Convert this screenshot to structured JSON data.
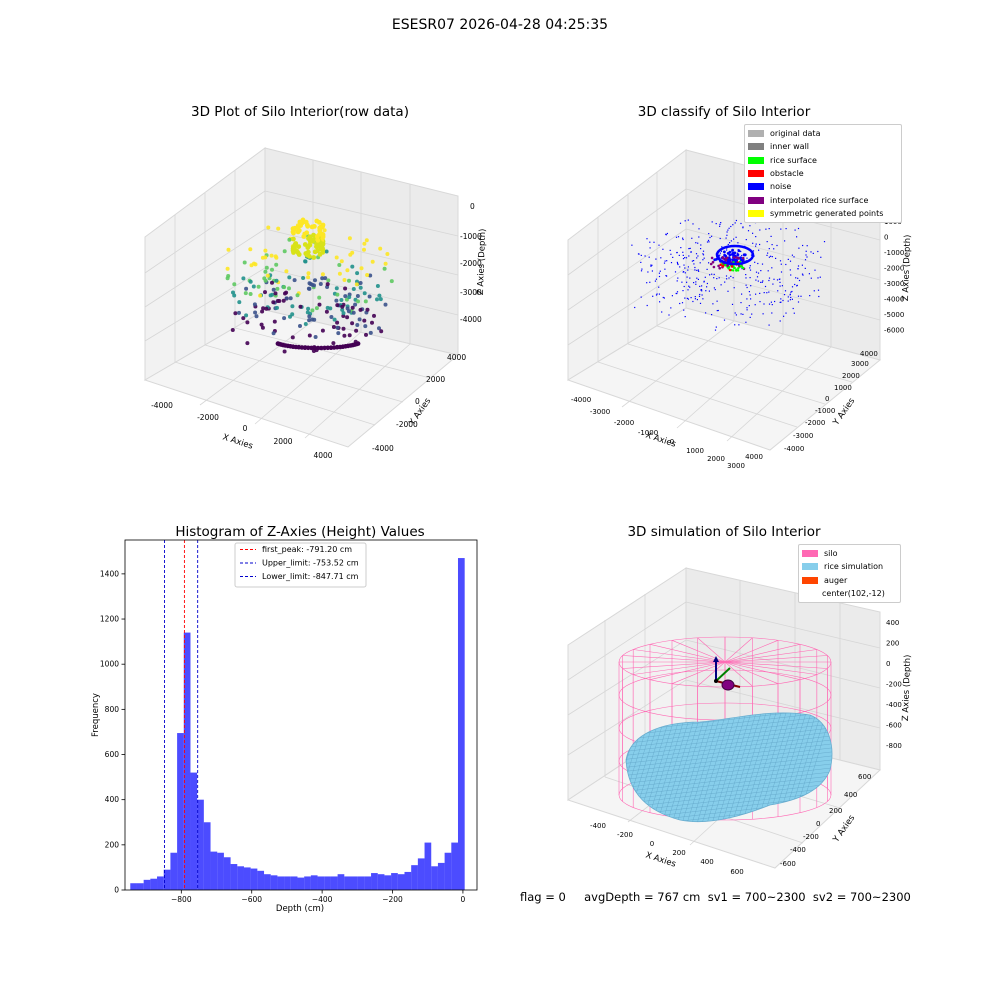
{
  "figure": {
    "suptitle": "ESESR07 2026-04-28 04:25:35",
    "footer": "flag = 0     avgDepth = 767 cm  sv1 = 700~2300  sv2 = 700~2300"
  },
  "panel1": {
    "title": "3D Plot of Silo Interior(row data)",
    "xlabel": "X Axies",
    "ylabel": "Y Axies",
    "zlabel": "Z Axies (Depth)",
    "xticks": [
      "-4000",
      "-2000",
      "0",
      "2000",
      "4000"
    ],
    "yticks": [
      "-4000",
      "-2000",
      "0",
      "2000",
      "4000"
    ],
    "zticks": [
      "0",
      "-1000",
      "-2000",
      "-3000",
      "-4000"
    ],
    "colormap": [
      "#440154",
      "#3b528b",
      "#21918c",
      "#5ec962",
      "#fde725"
    ]
  },
  "panel2": {
    "title": "3D classify of Silo Interior",
    "xlabel": "X Axies",
    "ylabel": "Y Axies",
    "zlabel": "Z Axies (Depth)",
    "xticks": [
      "-4000",
      "-3000",
      "-2000",
      "-1000",
      "0",
      "1000",
      "2000",
      "3000",
      "4000"
    ],
    "yticks": [
      "-4000",
      "-3000",
      "-2000",
      "-1000",
      "0",
      "1000",
      "2000",
      "3000",
      "4000"
    ],
    "zticks": [
      "1000",
      "0",
      "-1000",
      "-2000",
      "-3000",
      "-4000",
      "-5000",
      "-6000"
    ],
    "legend": [
      {
        "label": "original data",
        "color": "#b0b0b0"
      },
      {
        "label": "inner wall",
        "color": "#808080"
      },
      {
        "label": "rice surface",
        "color": "#00ff00"
      },
      {
        "label": "obstacle",
        "color": "#ff0000"
      },
      {
        "label": "noise",
        "color": "#0000ff"
      },
      {
        "label": "interpolated rice surface",
        "color": "#800080"
      },
      {
        "label": "symmetric generated points",
        "color": "#ffff00"
      }
    ]
  },
  "panel3": {
    "title": "Histogram of Z-Axies (Height) Values"
  },
  "panel4": {
    "title": "3D simulation of Silo Interior",
    "xlabel": "X Axies",
    "ylabel": "Y Axies",
    "zlabel": "Z Axies (Depth)",
    "xticks": [
      "-400",
      "-200",
      "0",
      "200",
      "400",
      "600"
    ],
    "yticks": [
      "-600",
      "-400",
      "-200",
      "0",
      "200",
      "400",
      "600"
    ],
    "zticks": [
      "400",
      "200",
      "0",
      "-200",
      "-400",
      "-600",
      "-800"
    ],
    "legend": [
      {
        "label": "silo",
        "color": "#ff69b4"
      },
      {
        "label": "rice simulation",
        "color": "#87ceeb"
      },
      {
        "label": "auger",
        "color": "#ff4500"
      },
      {
        "label": "center(102,-12)",
        "color": ""
      }
    ]
  },
  "chart_data": [
    {
      "type": "scatter",
      "title": "3D Plot of Silo Interior(row data)",
      "xlabel": "X Axies",
      "ylabel": "Y Axies",
      "zlabel": "Z Axies (Depth)",
      "xlim": [
        -4500,
        4500
      ],
      "ylim": [
        -4500,
        4500
      ],
      "zlim": [
        -4500,
        500
      ],
      "color_scale": "viridis by depth",
      "grid": true
    },
    {
      "type": "scatter",
      "title": "3D classify of Silo Interior",
      "xlabel": "X Axies",
      "ylabel": "Y Axies",
      "zlabel": "Z Axies (Depth)",
      "xlim": [
        -4500,
        4500
      ],
      "ylim": [
        -4500,
        4500
      ],
      "zlim": [
        -6500,
        1500
      ],
      "legend_position": "top-right",
      "grid": true
    },
    {
      "type": "bar",
      "title": "Histogram of Z-Axies (Height) Values",
      "xlabel": "Depth (cm)",
      "ylabel": "Frequency",
      "xlim": [
        -960,
        40
      ],
      "ylim": [
        0,
        1550
      ],
      "xticks": [
        -800,
        -600,
        -400,
        -200,
        0
      ],
      "yticks": [
        0,
        200,
        400,
        600,
        800,
        1000,
        1200,
        1400
      ],
      "bin_width": 19,
      "bin_starts": [
        -945,
        -926,
        -907,
        -888,
        -869,
        -850,
        -831,
        -812,
        -793,
        -774,
        -755,
        -736,
        -717,
        -698,
        -679,
        -660,
        -641,
        -622,
        -603,
        -584,
        -565,
        -546,
        -527,
        -508,
        -489,
        -470,
        -451,
        -432,
        -413,
        -394,
        -375,
        -356,
        -337,
        -318,
        -299,
        -280,
        -261,
        -242,
        -223,
        -204,
        -185,
        -166,
        -147,
        -128,
        -109,
        -90,
        -71,
        -52,
        -33,
        -14
      ],
      "values": [
        30,
        30,
        45,
        50,
        60,
        90,
        165,
        695,
        1140,
        520,
        400,
        300,
        170,
        165,
        145,
        115,
        105,
        100,
        95,
        85,
        70,
        65,
        60,
        60,
        60,
        55,
        60,
        65,
        60,
        60,
        60,
        70,
        60,
        60,
        60,
        60,
        75,
        70,
        65,
        75,
        70,
        80,
        110,
        140,
        210,
        105,
        120,
        165,
        210,
        1470
      ],
      "bar_color": "#0000ff",
      "lines": [
        {
          "label": "first_peak: -791.20 cm",
          "x": -791.2,
          "color": "#ff0000"
        },
        {
          "label": "Upper_limit: -753.52 cm",
          "x": -753.52,
          "color": "#0000cc"
        },
        {
          "label": "Lower_limit: -847.71 cm",
          "x": -847.71,
          "color": "#0000cc"
        }
      ],
      "legend_position": "top-center"
    },
    {
      "type": "surface",
      "title": "3D simulation of Silo Interior",
      "xlabel": "X Axies",
      "ylabel": "Y Axies",
      "zlabel": "Z Axies (Depth)",
      "xlim": [
        -500,
        700
      ],
      "ylim": [
        -700,
        700
      ],
      "zlim": [
        -900,
        500
      ],
      "legend_position": "top-right",
      "grid": true
    }
  ]
}
